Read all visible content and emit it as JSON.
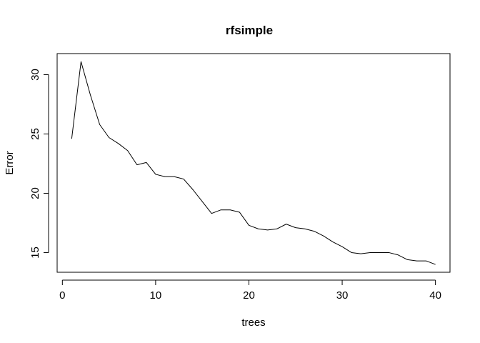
{
  "chart_data": {
    "type": "line",
    "title": "rfsimple",
    "xlabel": "trees",
    "ylabel": "Error",
    "x_ticks": [
      0,
      10,
      20,
      30,
      40
    ],
    "y_ticks": [
      15,
      20,
      25,
      30
    ],
    "x_tick_labels": [
      "0",
      "10",
      "20",
      "30",
      "40"
    ],
    "y_tick_labels": [
      "15",
      "20",
      "25",
      "30"
    ],
    "xlim": [
      -0.56,
      41.56
    ],
    "ylim": [
      13.34,
      31.78
    ],
    "grid": false,
    "line_color": "#000000",
    "series": [
      {
        "x": [
          1,
          2,
          3,
          4,
          5,
          6,
          7,
          8,
          9,
          10,
          11,
          12,
          13,
          14,
          15,
          16,
          17,
          18,
          19,
          20,
          21,
          22,
          23,
          24,
          25,
          26,
          27,
          28,
          29,
          30,
          31,
          32,
          33,
          34,
          35,
          36,
          37,
          38,
          39,
          40
        ],
        "values": [
          24.6,
          31.1,
          28.3,
          25.8,
          24.7,
          24.2,
          23.6,
          22.4,
          22.6,
          21.6,
          21.4,
          21.4,
          21.2,
          20.3,
          19.3,
          18.3,
          18.6,
          18.6,
          18.4,
          17.3,
          17.0,
          16.9,
          17.0,
          17.4,
          17.1,
          17.0,
          16.8,
          16.4,
          15.9,
          15.5,
          15.0,
          14.9,
          15.0,
          15.0,
          15.0,
          14.8,
          14.4,
          14.3,
          14.3,
          14.0
        ]
      }
    ]
  }
}
